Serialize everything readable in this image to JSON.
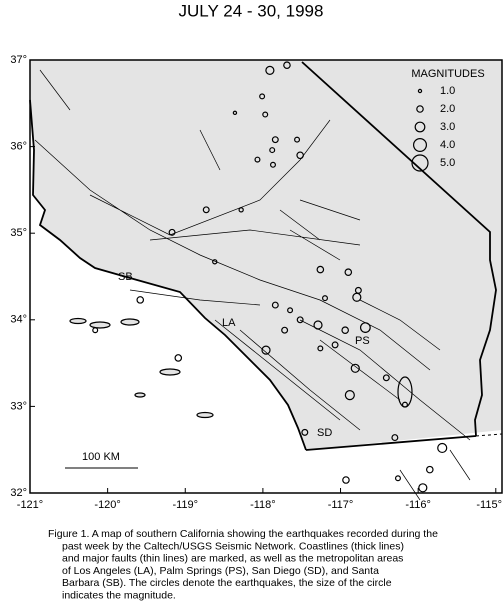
{
  "title": "JULY 24 - 30, 1998",
  "map": {
    "xlim": [
      -121,
      -114.92
    ],
    "ylim": [
      32,
      37
    ],
    "xticks": [
      {
        "value": -121,
        "label": "-121°"
      },
      {
        "value": -120,
        "label": "-120°"
      },
      {
        "value": -119,
        "label": "-119°"
      },
      {
        "value": -118,
        "label": "-118°"
      },
      {
        "value": -117,
        "label": "-117°"
      },
      {
        "value": -116,
        "label": "-116°"
      },
      {
        "value": -115,
        "label": "-115°"
      }
    ],
    "yticks": [
      {
        "value": 37,
        "label": "37°"
      },
      {
        "value": 36,
        "label": "36°"
      },
      {
        "value": 35,
        "label": "35°"
      },
      {
        "value": 34,
        "label": "34°"
      },
      {
        "value": 33,
        "label": "33°"
      },
      {
        "value": 32,
        "label": "32°"
      }
    ],
    "legend": {
      "title": "MAGNITUDES",
      "entries": [
        {
          "value": 1,
          "label": "1.0"
        },
        {
          "value": 2,
          "label": "2.0"
        },
        {
          "value": 3,
          "label": "3.0"
        },
        {
          "value": 4,
          "label": "4.0"
        },
        {
          "value": 5,
          "label": "5.0"
        }
      ]
    },
    "cities": [
      "SB",
      "LA",
      "PS",
      "SD"
    ],
    "scale_bar": "100 KM",
    "quakes": [
      {
        "lon": -117.91,
        "lat": 36.88,
        "mag": 2.5
      },
      {
        "lon": -117.69,
        "lat": 36.94,
        "mag": 2.0
      },
      {
        "lon": -118.01,
        "lat": 36.58,
        "mag": 1.5
      },
      {
        "lon": -118.36,
        "lat": 36.39,
        "mag": 1.0
      },
      {
        "lon": -117.97,
        "lat": 36.37,
        "mag": 1.5
      },
      {
        "lon": -117.84,
        "lat": 36.08,
        "mag": 1.8
      },
      {
        "lon": -117.88,
        "lat": 35.96,
        "mag": 1.5
      },
      {
        "lon": -117.87,
        "lat": 35.79,
        "mag": 1.5
      },
      {
        "lon": -118.07,
        "lat": 35.85,
        "mag": 1.5
      },
      {
        "lon": -117.52,
        "lat": 35.9,
        "mag": 2.0
      },
      {
        "lon": -117.56,
        "lat": 36.08,
        "mag": 1.5
      },
      {
        "lon": -118.73,
        "lat": 35.27,
        "mag": 1.8
      },
      {
        "lon": -118.28,
        "lat": 35.27,
        "mag": 1.3
      },
      {
        "lon": -119.17,
        "lat": 35.01,
        "mag": 1.8
      },
      {
        "lon": -118.62,
        "lat": 34.67,
        "mag": 1.3
      },
      {
        "lon": -117.26,
        "lat": 34.58,
        "mag": 2.0
      },
      {
        "lon": -116.77,
        "lat": 34.34,
        "mag": 1.8
      },
      {
        "lon": -116.79,
        "lat": 34.26,
        "mag": 2.5
      },
      {
        "lon": -116.9,
        "lat": 34.55,
        "mag": 2.0
      },
      {
        "lon": -117.2,
        "lat": 34.25,
        "mag": 1.5
      },
      {
        "lon": -117.84,
        "lat": 34.17,
        "mag": 1.8
      },
      {
        "lon": -117.65,
        "lat": 34.11,
        "mag": 1.5
      },
      {
        "lon": -117.52,
        "lat": 34.0,
        "mag": 1.8
      },
      {
        "lon": -117.29,
        "lat": 33.94,
        "mag": 2.5
      },
      {
        "lon": -116.94,
        "lat": 33.88,
        "mag": 2.0
      },
      {
        "lon": -116.68,
        "lat": 33.91,
        "mag": 3.0
      },
      {
        "lon": -117.07,
        "lat": 33.71,
        "mag": 1.8
      },
      {
        "lon": -117.26,
        "lat": 33.67,
        "mag": 1.5
      },
      {
        "lon": -116.81,
        "lat": 33.44,
        "mag": 2.5
      },
      {
        "lon": -116.88,
        "lat": 33.13,
        "mag": 2.8
      },
      {
        "lon": -116.41,
        "lat": 33.33,
        "mag": 1.8
      },
      {
        "lon": -116.17,
        "lat": 33.02,
        "mag": 1.5
      },
      {
        "lon": -117.96,
        "lat": 33.65,
        "mag": 2.5
      },
      {
        "lon": -117.72,
        "lat": 33.88,
        "mag": 1.8
      },
      {
        "lon": -119.09,
        "lat": 33.56,
        "mag": 2.0
      },
      {
        "lon": -119.58,
        "lat": 34.23,
        "mag": 2.0
      },
      {
        "lon": -120.16,
        "lat": 33.88,
        "mag": 1.5
      },
      {
        "lon": -115.69,
        "lat": 32.52,
        "mag": 2.8
      },
      {
        "lon": -115.85,
        "lat": 32.27,
        "mag": 2.0
      },
      {
        "lon": -115.94,
        "lat": 32.06,
        "mag": 2.5
      },
      {
        "lon": -116.26,
        "lat": 32.17,
        "mag": 1.5
      },
      {
        "lon": -116.93,
        "lat": 32.15,
        "mag": 2.0
      },
      {
        "lon": -117.46,
        "lat": 32.7,
        "mag": 1.8
      },
      {
        "lon": -116.3,
        "lat": 32.64,
        "mag": 1.8
      }
    ]
  },
  "caption": [
    "Figure 1. A map of southern California showing the earthquakes recorded during the",
    "past week by the Caltech/USGS Seismic Network.  Coastlines (thick lines)",
    "and major faults (thin lines) are marked, as well as the metropolitan areas",
    "of Los Angeles (LA), Palm Springs (PS), San Diego (SD), and Santa",
    "Barbara (SB).  The circles denote the earthquakes, the size of the circle",
    "indicates the magnitude."
  ]
}
